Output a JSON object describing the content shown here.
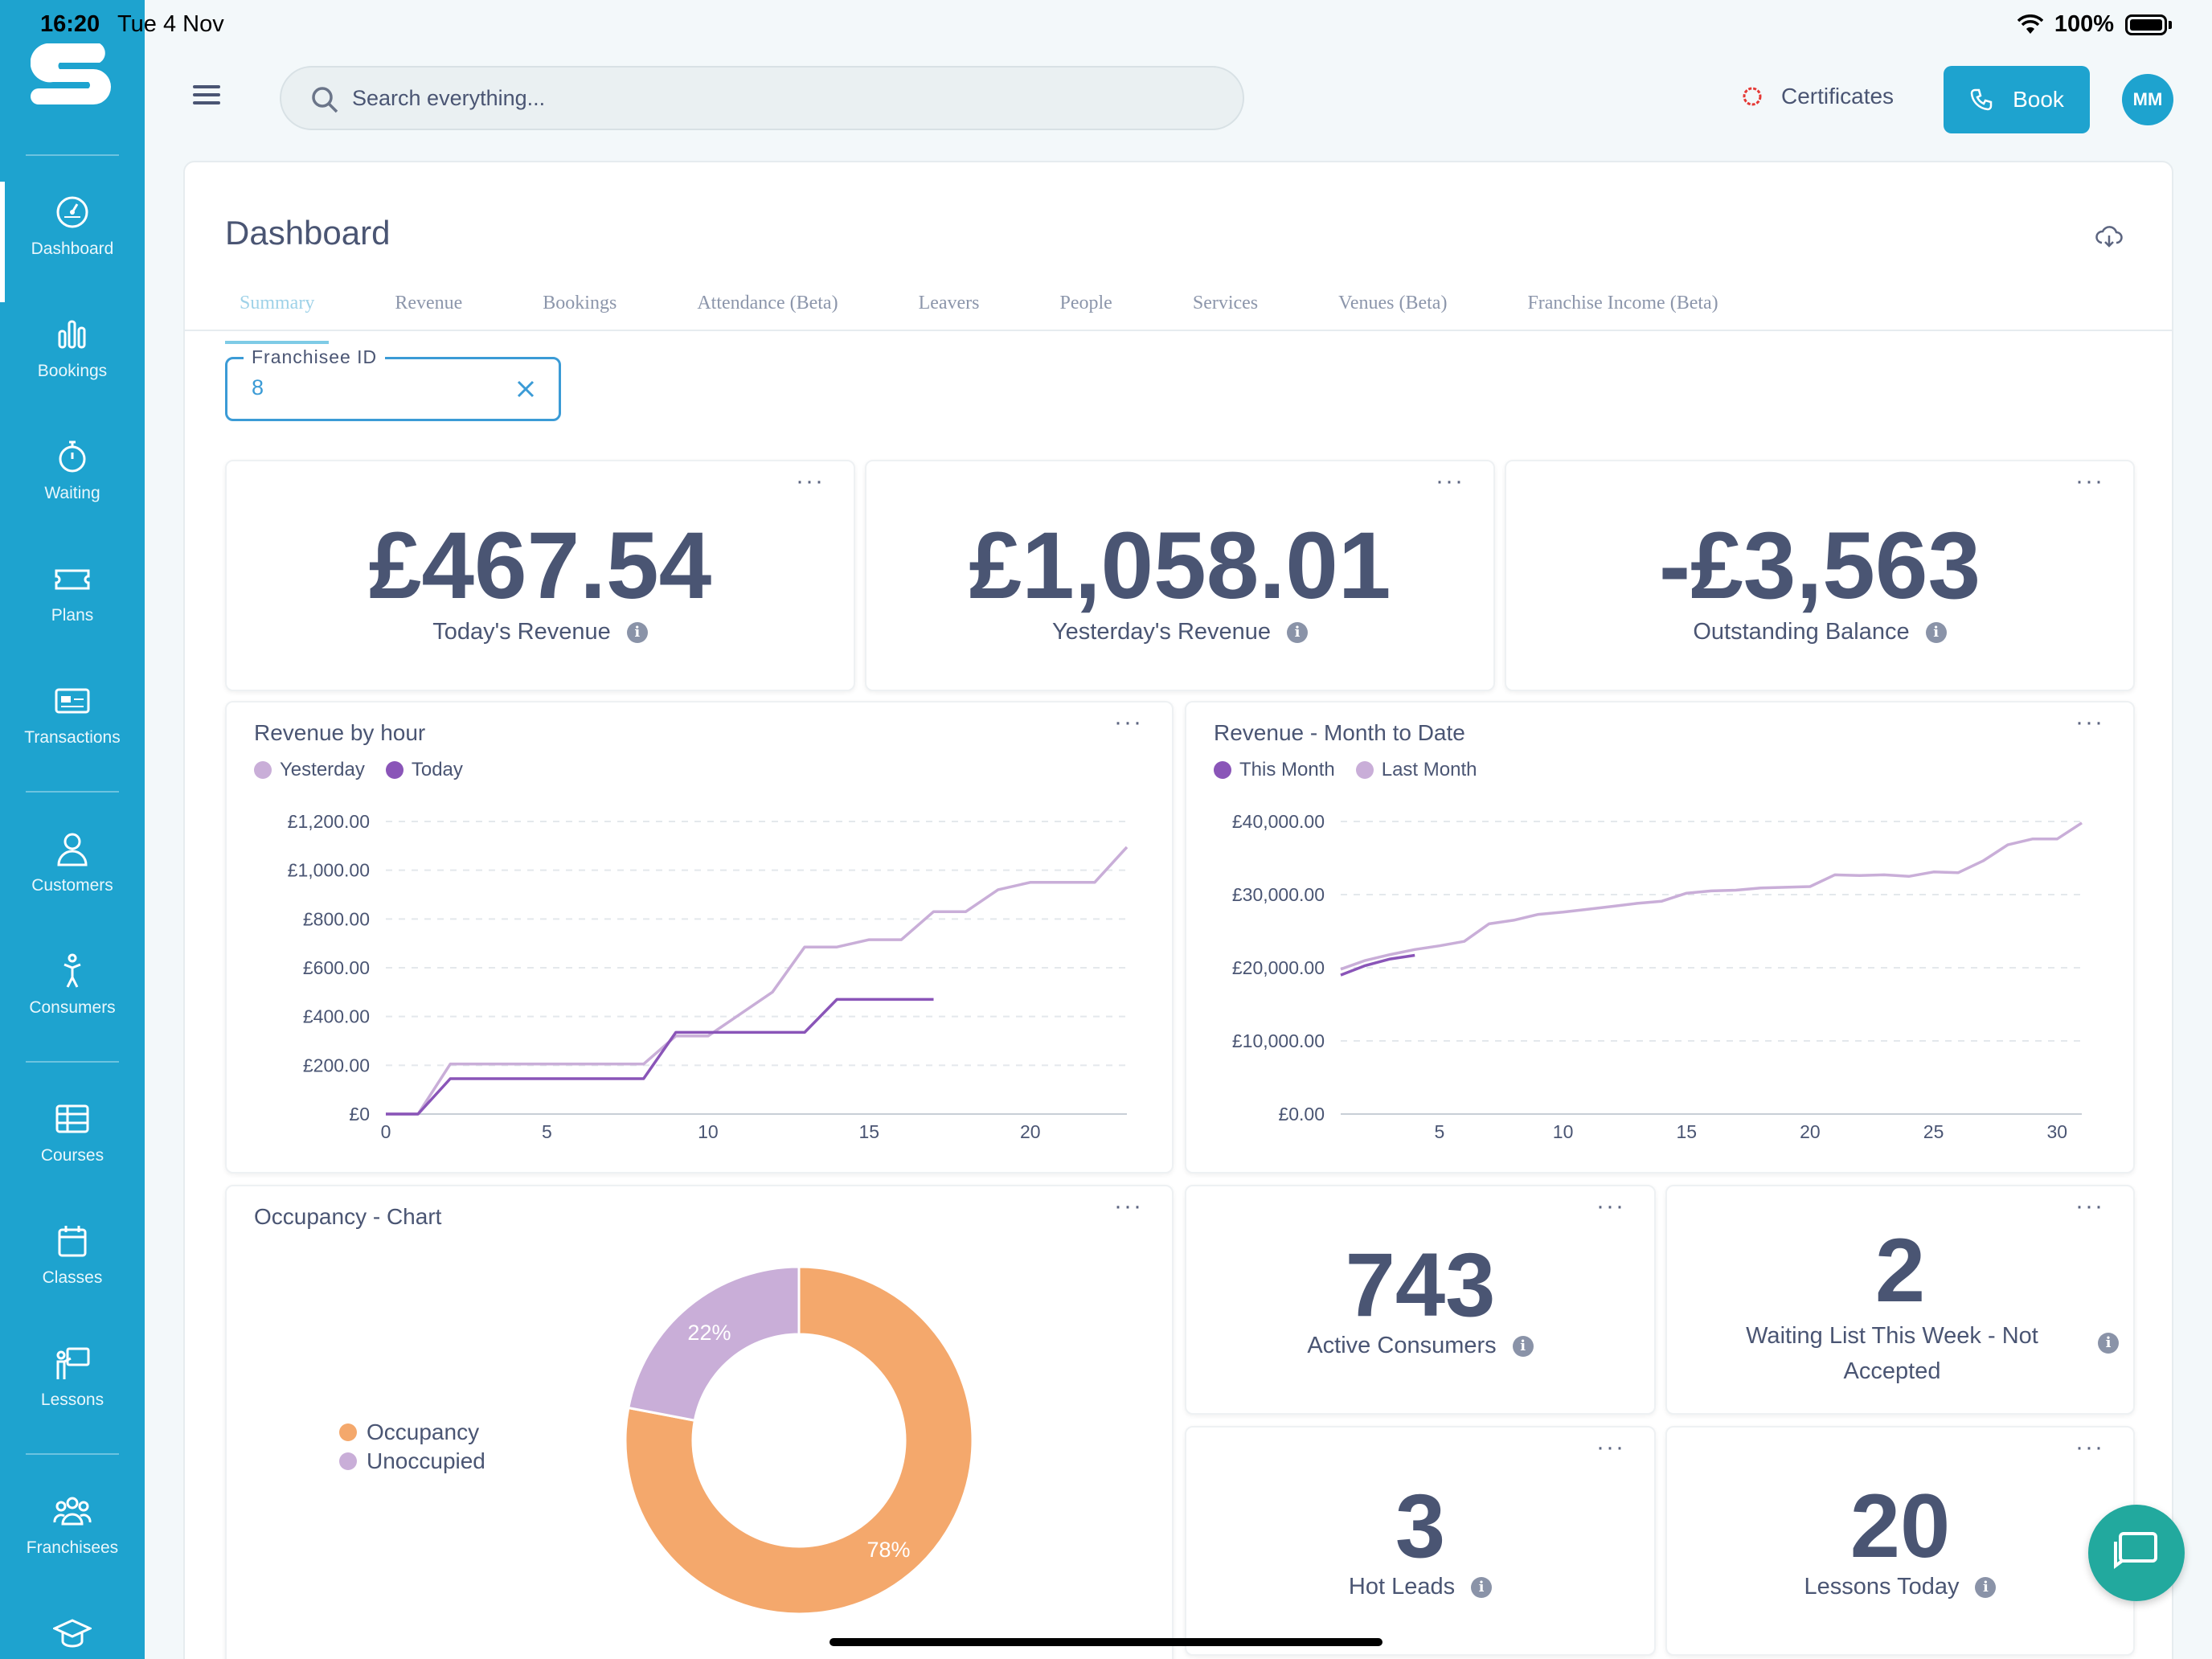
{
  "status_bar": {
    "time": "16:20",
    "date": "Tue 4 Nov",
    "battery": "100%"
  },
  "colors": {
    "brand": "#1ea3cf",
    "text": "#4a5573",
    "series_light": "#c9aed8",
    "series_dark": "#8a55b8",
    "occupancy": "#f4a86c",
    "unoccupied": "#c9aed8",
    "chat": "#22a99e"
  },
  "sidebar": {
    "items": [
      {
        "label": "Dashboard",
        "icon": "speedometer-icon"
      },
      {
        "label": "Bookings",
        "icon": "bar-chart-icon"
      },
      {
        "label": "Waiting",
        "icon": "stopwatch-icon"
      },
      {
        "label": "Plans",
        "icon": "ticket-icon"
      },
      {
        "label": "Transactions",
        "icon": "card-icon"
      },
      {
        "label": "Customers",
        "icon": "person-icon"
      },
      {
        "label": "Consumers",
        "icon": "swimmer-icon"
      },
      {
        "label": "Courses",
        "icon": "table-icon"
      },
      {
        "label": "Classes",
        "icon": "calendar-icon"
      },
      {
        "label": "Lessons",
        "icon": "teacher-icon"
      },
      {
        "label": "Franchisees",
        "icon": "group-icon"
      }
    ]
  },
  "topbar": {
    "search_placeholder": "Search everything...",
    "certificates_label": "Certificates",
    "book_label": "Book",
    "avatar_initials": "MM"
  },
  "page": {
    "title": "Dashboard",
    "tabs": [
      "Summary",
      "Revenue",
      "Bookings",
      "Attendance (Beta)",
      "Leavers",
      "People",
      "Services",
      "Venues (Beta)",
      "Franchise Income (Beta)"
    ],
    "filter": {
      "label": "Franchisee ID",
      "value": "8"
    }
  },
  "kpis": {
    "today_revenue": {
      "value": "£467.54",
      "label": "Today's Revenue"
    },
    "yesterday_revenue": {
      "value": "£1,058.01",
      "label": "Yesterday's Revenue"
    },
    "outstanding": {
      "value": "-£3,563",
      "label": "Outstanding Balance"
    },
    "active_consumers": {
      "value": "743",
      "label": "Active Consumers"
    },
    "waiting_list": {
      "value": "2",
      "label": "Waiting List This Week - Not Accepted"
    },
    "hot_leads": {
      "value": "3",
      "label": "Hot Leads"
    },
    "lessons_today": {
      "value": "20",
      "label": "Lessons Today"
    }
  },
  "chart_data": [
    {
      "type": "line",
      "title": "Revenue by hour",
      "xlim": [
        0,
        23
      ],
      "ylim": [
        0,
        1200
      ],
      "xticks": [
        0,
        5,
        10,
        15,
        20
      ],
      "yticks": [
        "£0",
        "£200.00",
        "£400.00",
        "£600.00",
        "£800.00",
        "£1,000.00",
        "£1,200.00"
      ],
      "ytick_values": [
        0,
        200,
        400,
        600,
        800,
        1000,
        1200
      ],
      "grid": true,
      "legend": "top-left",
      "series": [
        {
          "name": "Yesterday",
          "color": "#c9aed8",
          "x": [
            0,
            1,
            2,
            3,
            4,
            5,
            6,
            7,
            8,
            9,
            10,
            11,
            12,
            13,
            14,
            15,
            16,
            17,
            18,
            19,
            20,
            21,
            22,
            23
          ],
          "y": [
            0,
            0,
            205,
            205,
            205,
            205,
            205,
            205,
            205,
            320,
            320,
            410,
            500,
            685,
            685,
            715,
            715,
            830,
            830,
            920,
            950,
            950,
            950,
            1095
          ]
        },
        {
          "name": "Today",
          "color": "#8a55b8",
          "x": [
            0,
            1,
            2,
            3,
            4,
            5,
            6,
            7,
            8,
            9,
            10,
            11,
            12,
            13,
            14,
            15,
            16,
            17
          ],
          "y": [
            0,
            0,
            145,
            145,
            145,
            145,
            145,
            145,
            145,
            335,
            335,
            335,
            335,
            335,
            470,
            470,
            470,
            470
          ]
        }
      ]
    },
    {
      "type": "line",
      "title": "Revenue - Month to Date",
      "xlim": [
        1,
        31
      ],
      "ylim": [
        0,
        40000
      ],
      "xticks": [
        5,
        10,
        15,
        20,
        25,
        30
      ],
      "yticks": [
        "£0.00",
        "£10,000.00",
        "£20,000.00",
        "£30,000.00",
        "£40,000.00"
      ],
      "ytick_values": [
        0,
        10000,
        20000,
        30000,
        40000
      ],
      "grid": true,
      "legend": "top-left",
      "series": [
        {
          "name": "This Month",
          "color": "#8a55b8",
          "x": [
            1,
            2,
            3,
            4
          ],
          "y": [
            19000,
            20300,
            21200,
            21700
          ]
        },
        {
          "name": "Last Month",
          "color": "#c9aed8",
          "x": [
            1,
            2,
            3,
            4,
            5,
            6,
            7,
            8,
            9,
            10,
            11,
            12,
            13,
            14,
            15,
            16,
            17,
            18,
            19,
            20,
            21,
            22,
            23,
            24,
            25,
            26,
            27,
            28,
            29,
            30,
            31
          ],
          "y": [
            19800,
            21000,
            21800,
            22500,
            23000,
            23600,
            26000,
            26500,
            27300,
            27600,
            28000,
            28400,
            28800,
            29100,
            30200,
            30500,
            30600,
            30900,
            31000,
            31100,
            32700,
            32600,
            32700,
            32500,
            33100,
            33000,
            34600,
            36800,
            37600,
            37600,
            39800
          ]
        }
      ]
    },
    {
      "type": "pie",
      "title": "Occupancy - Chart",
      "donut": true,
      "legend": "left",
      "categories": [
        "Occupancy",
        "Unoccupied"
      ],
      "values": [
        78,
        22
      ],
      "labels": [
        "78%",
        "22%"
      ],
      "colors": [
        "#f4a86c",
        "#c9aed8"
      ]
    }
  ]
}
